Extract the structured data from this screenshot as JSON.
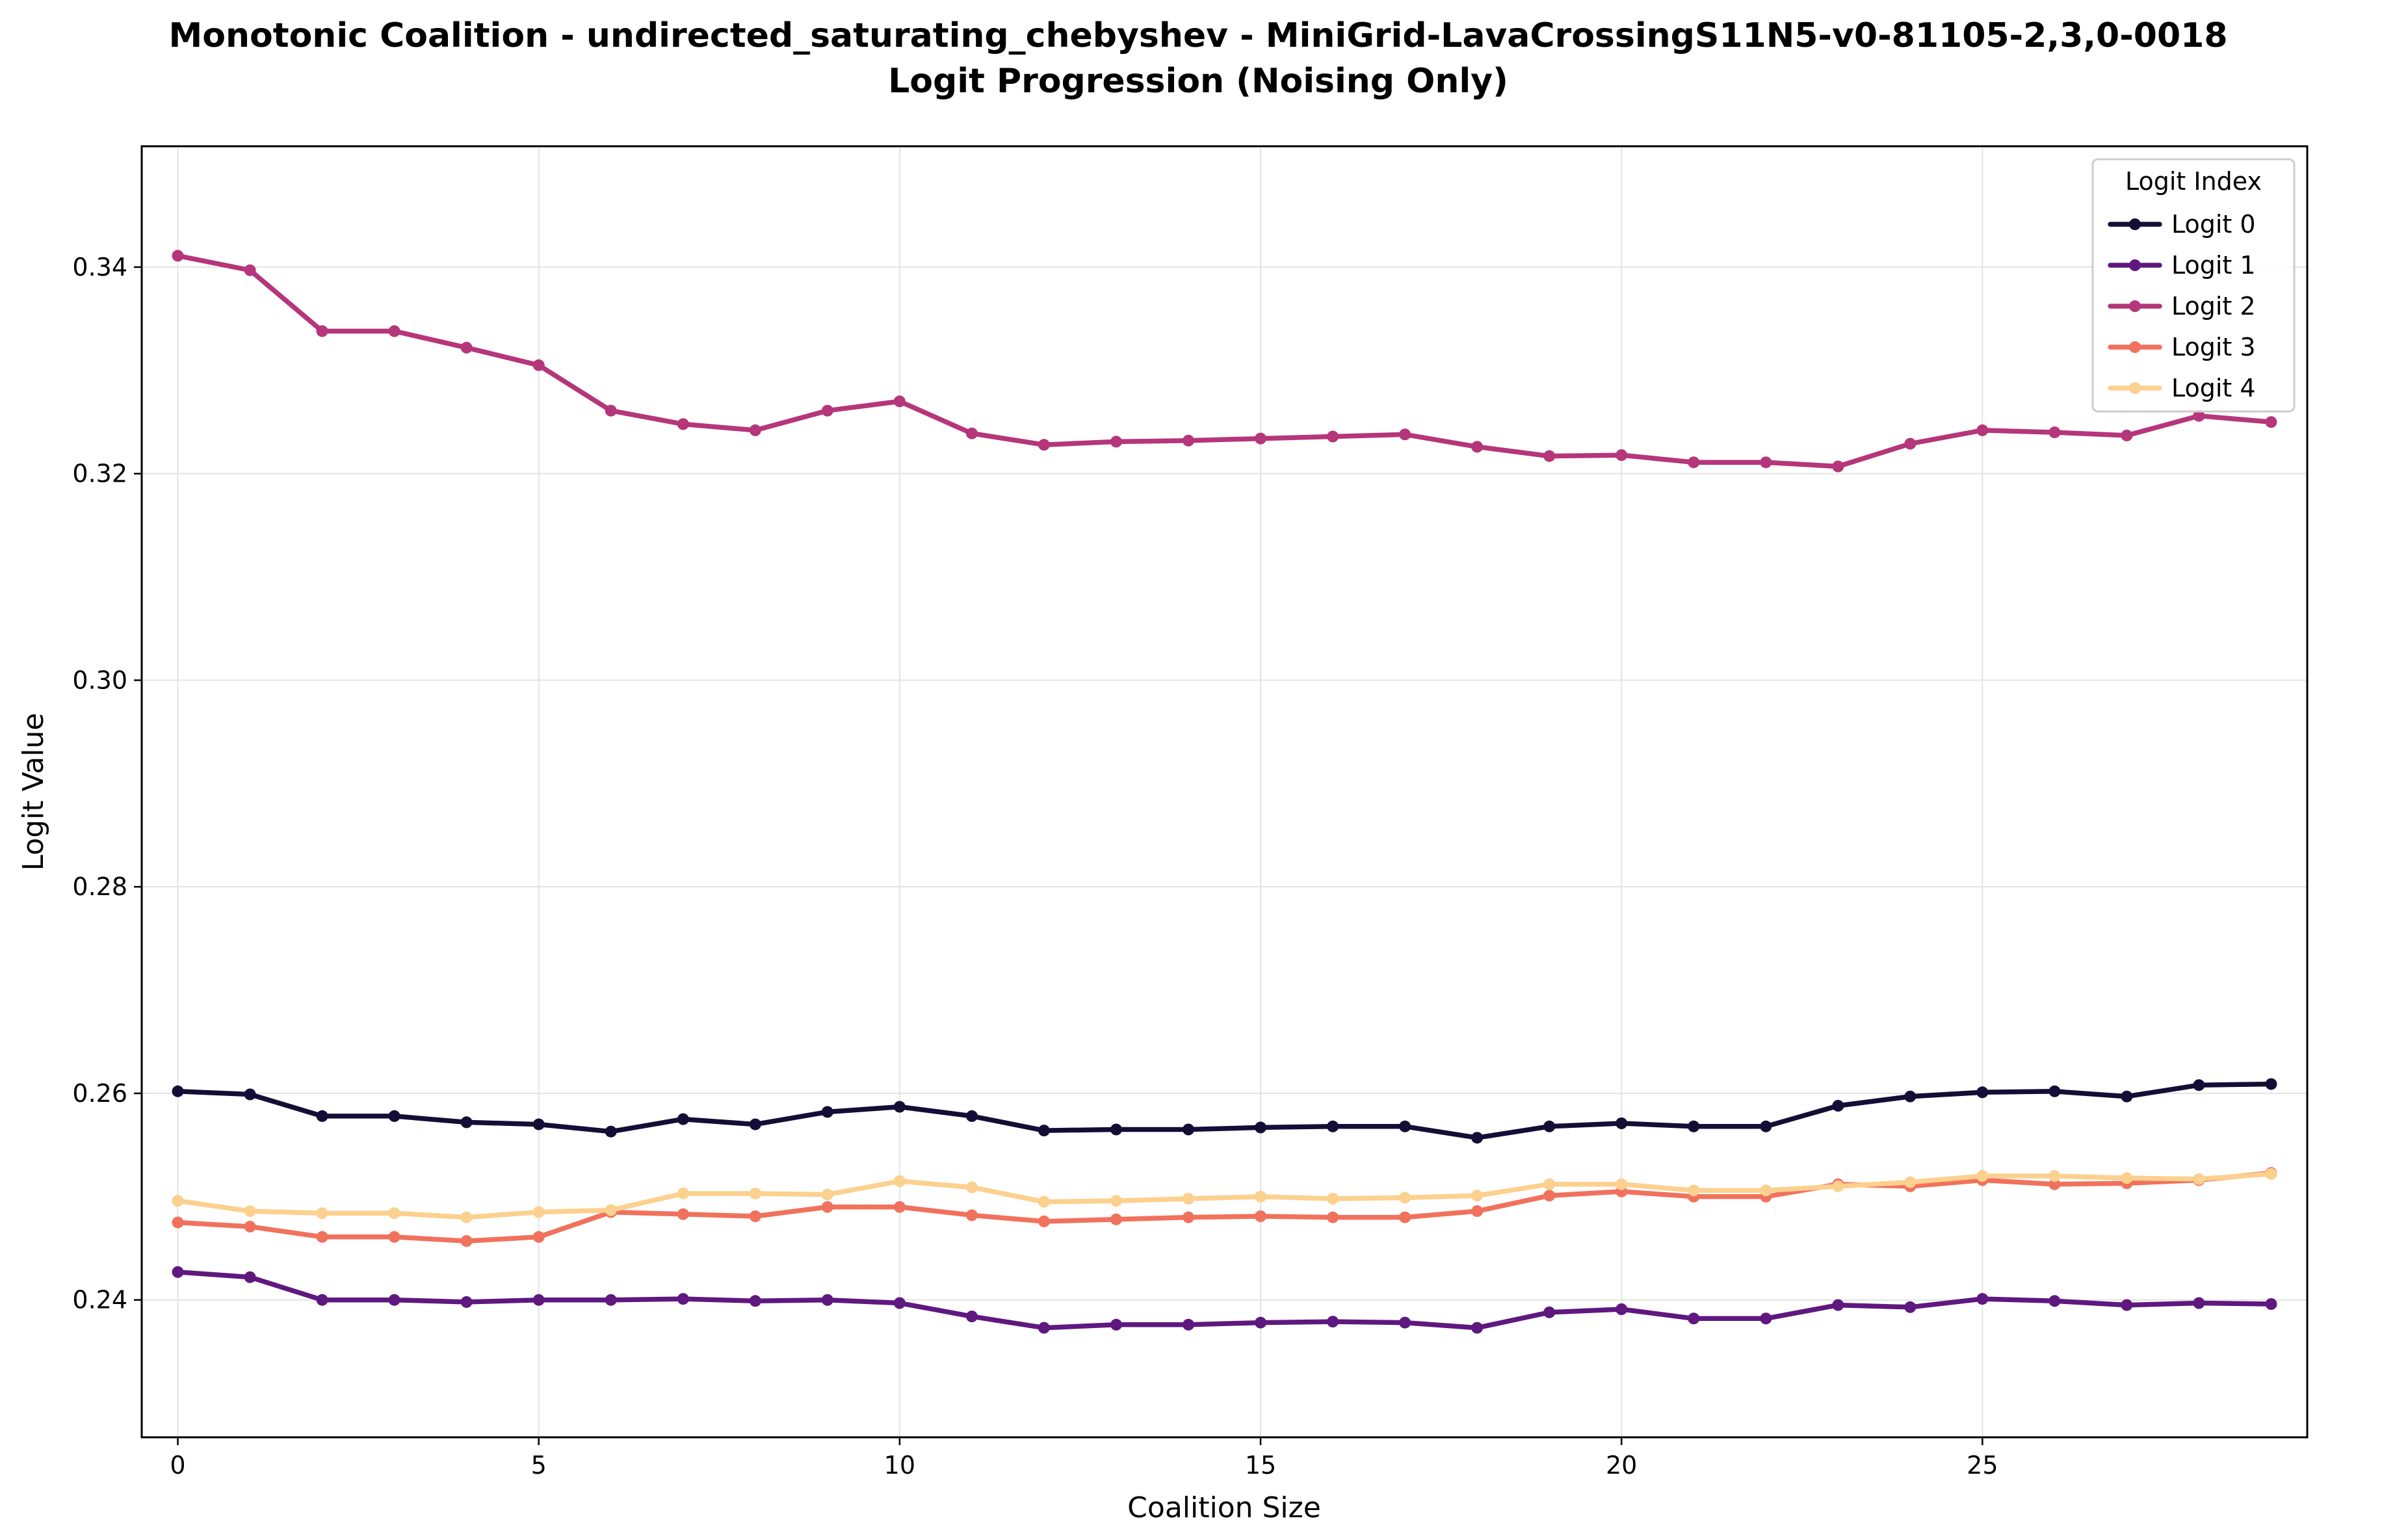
{
  "chart_data": {
    "type": "line",
    "title_line1": "Monotonic Coalition - undirected_saturating_chebyshev - MiniGrid-LavaCrossingS11N5-v0-81105-2,3,0-0018",
    "title_line2": "Logit Progression (Noising Only)",
    "xlabel": "Coalition Size",
    "ylabel": "Logit Value",
    "xlim": [
      -0.5,
      29.5
    ],
    "ylim": [
      0.2267,
      0.3517
    ],
    "xticks": [
      0,
      5,
      10,
      15,
      20,
      25
    ],
    "yticks": [
      0.24,
      0.26,
      0.28,
      0.3,
      0.32,
      0.34
    ],
    "ytick_labels": [
      "0.24",
      "0.26",
      "0.28",
      "0.30",
      "0.32",
      "0.34"
    ],
    "grid": true,
    "legend": {
      "title": "Logit Index",
      "position": "top-right"
    },
    "x": [
      0,
      1,
      2,
      3,
      4,
      5,
      6,
      7,
      8,
      9,
      10,
      11,
      12,
      13,
      14,
      15,
      16,
      17,
      18,
      19,
      20,
      21,
      22,
      23,
      24,
      25,
      26,
      27,
      28,
      29
    ],
    "series": [
      {
        "name": "Logit 0",
        "color": "#140e36",
        "values": [
          0.2602,
          0.2599,
          0.2578,
          0.2578,
          0.2572,
          0.257,
          0.2563,
          0.2575,
          0.257,
          0.2582,
          0.2587,
          0.2578,
          0.2564,
          0.2565,
          0.2565,
          0.2567,
          0.2568,
          0.2568,
          0.2557,
          0.2568,
          0.2571,
          0.2568,
          0.2568,
          0.2588,
          0.2597,
          0.2601,
          0.2602,
          0.2597,
          0.2608,
          0.2609
        ]
      },
      {
        "name": "Logit 1",
        "color": "#5f187f",
        "values": [
          0.2427,
          0.2422,
          0.24,
          0.24,
          0.2398,
          0.24,
          0.24,
          0.2401,
          0.2399,
          0.24,
          0.2397,
          0.2384,
          0.2373,
          0.2376,
          0.2376,
          0.2378,
          0.2379,
          0.2378,
          0.2373,
          0.2388,
          0.2391,
          0.2382,
          0.2382,
          0.2395,
          0.2393,
          0.2401,
          0.2399,
          0.2395,
          0.2397,
          0.2396
        ]
      },
      {
        "name": "Logit 2",
        "color": "#b5367a",
        "values": [
          0.3411,
          0.3397,
          0.3338,
          0.3338,
          0.3322,
          0.3305,
          0.3261,
          0.3248,
          0.3242,
          0.3261,
          0.327,
          0.3239,
          0.3228,
          0.3231,
          0.3232,
          0.3234,
          0.3236,
          0.3238,
          0.3226,
          0.3217,
          0.3218,
          0.3211,
          0.3211,
          0.3207,
          0.3229,
          0.3242,
          0.324,
          0.3237,
          0.3256,
          0.325
        ]
      },
      {
        "name": "Logit 3",
        "color": "#f1725c",
        "values": [
          0.2475,
          0.2471,
          0.2461,
          0.2461,
          0.2457,
          0.2461,
          0.2485,
          0.2483,
          0.2481,
          0.249,
          0.249,
          0.2482,
          0.2476,
          0.2478,
          0.248,
          0.2481,
          0.248,
          0.248,
          0.2486,
          0.2501,
          0.2505,
          0.25,
          0.25,
          0.2512,
          0.251,
          0.2516,
          0.2512,
          0.2513,
          0.2516,
          0.2523
        ]
      },
      {
        "name": "Logit 4",
        "color": "#fcd08e",
        "values": [
          0.2496,
          0.2486,
          0.2484,
          0.2484,
          0.248,
          0.2485,
          0.2487,
          0.2503,
          0.2503,
          0.2502,
          0.2515,
          0.2509,
          0.2495,
          0.2496,
          0.2498,
          0.25,
          0.2498,
          0.2499,
          0.2501,
          0.2512,
          0.2512,
          0.2506,
          0.2506,
          0.251,
          0.2514,
          0.252,
          0.252,
          0.2518,
          0.2517,
          0.2522
        ]
      }
    ]
  }
}
